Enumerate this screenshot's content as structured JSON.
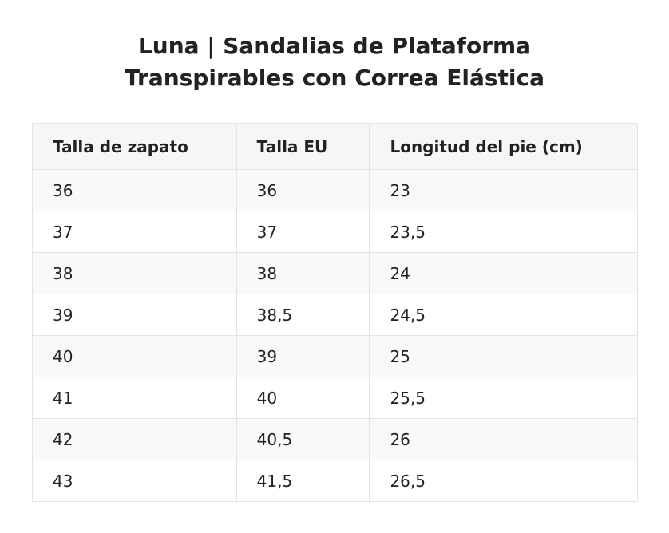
{
  "title": {
    "line1": "Luna | Sandalias de Plataforma",
    "line2": "Transpirables con Correa Elástica"
  },
  "table": {
    "headers": [
      "Talla de zapato",
      "Talla EU",
      "Longitud del pie (cm)"
    ],
    "rows": [
      [
        "36",
        "36",
        "23"
      ],
      [
        "37",
        "37",
        "23,5"
      ],
      [
        "38",
        "38",
        "24"
      ],
      [
        "39",
        "38,5",
        "24,5"
      ],
      [
        "40",
        "39",
        "25"
      ],
      [
        "41",
        "40",
        "25,5"
      ],
      [
        "42",
        "40,5",
        "26"
      ],
      [
        "43",
        "41,5",
        "26,5"
      ]
    ]
  }
}
